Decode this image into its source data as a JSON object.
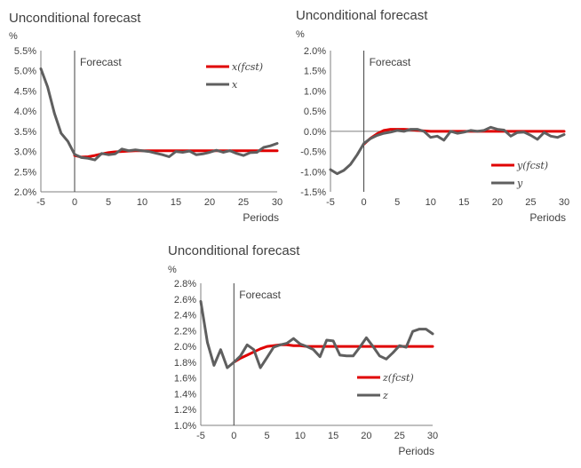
{
  "chart_data": [
    {
      "type": "line",
      "title": "Unconditional forecast",
      "unit": "%",
      "xlabel": "Periods",
      "marker_label": "Forecast",
      "marker_x": 0,
      "xlim": [
        -5,
        30
      ],
      "ylim": [
        2.0,
        5.5
      ],
      "xticks": [
        "-5",
        "0",
        "5",
        "10",
        "15",
        "20",
        "25",
        "30"
      ],
      "yticks": [
        "2.0%",
        "2.5%",
        "3.0%",
        "3.5%",
        "4.0%",
        "4.5%",
        "5.0%",
        "5.5%"
      ],
      "legend_position": "top-right",
      "series": [
        {
          "name": "x(fcst)",
          "color": "#e00000",
          "x": [
            0,
            1,
            2,
            3,
            4,
            5,
            6,
            7,
            8,
            9,
            10,
            11,
            12,
            13,
            14,
            15,
            16,
            17,
            18,
            19,
            20,
            21,
            22,
            23,
            24,
            25,
            26,
            27,
            28,
            29,
            30
          ],
          "values": [
            2.9,
            2.86,
            2.87,
            2.9,
            2.94,
            2.97,
            2.99,
            3.0,
            3.01,
            3.02,
            3.02,
            3.02,
            3.02,
            3.02,
            3.02,
            3.02,
            3.02,
            3.02,
            3.02,
            3.02,
            3.02,
            3.02,
            3.02,
            3.02,
            3.02,
            3.02,
            3.02,
            3.02,
            3.02,
            3.02,
            3.02
          ]
        },
        {
          "name": "x",
          "color": "#5f5f5f",
          "x": [
            -5,
            -4,
            -3,
            -2,
            -1,
            0,
            1,
            2,
            3,
            4,
            5,
            6,
            7,
            8,
            9,
            10,
            11,
            12,
            13,
            14,
            15,
            16,
            17,
            18,
            19,
            20,
            21,
            22,
            23,
            24,
            25,
            26,
            27,
            28,
            29,
            30
          ],
          "values": [
            5.05,
            4.6,
            3.95,
            3.45,
            3.25,
            2.93,
            2.85,
            2.83,
            2.79,
            2.95,
            2.92,
            2.94,
            3.06,
            3.02,
            3.04,
            3.02,
            3.0,
            2.96,
            2.92,
            2.87,
            3.0,
            2.98,
            3.01,
            2.92,
            2.94,
            2.98,
            3.03,
            2.98,
            3.02,
            2.95,
            2.9,
            2.97,
            2.98,
            3.1,
            3.14,
            3.2
          ]
        }
      ]
    },
    {
      "type": "line",
      "title": "Unconditional forecast",
      "unit": "%",
      "xlabel": "Periods",
      "marker_label": "Forecast",
      "marker_x": 0,
      "xlim": [
        -5,
        30
      ],
      "ylim": [
        -1.5,
        2.0
      ],
      "xticks": [
        "-5",
        "0",
        "5",
        "10",
        "15",
        "20",
        "25",
        "30"
      ],
      "yticks": [
        "-1.5%",
        "-1.0%",
        "-0.5%",
        "0.0%",
        "0.5%",
        "1.0%",
        "1.5%",
        "2.0%"
      ],
      "legend_position": "bottom-right",
      "series": [
        {
          "name": "y(fcst)",
          "color": "#e00000",
          "x": [
            0,
            1,
            2,
            3,
            4,
            5,
            6,
            7,
            8,
            9,
            10,
            11,
            12,
            13,
            14,
            15,
            16,
            17,
            18,
            19,
            20,
            21,
            22,
            23,
            24,
            25,
            26,
            27,
            28,
            29,
            30
          ],
          "values": [
            -0.32,
            -0.17,
            -0.06,
            0.02,
            0.05,
            0.05,
            0.05,
            0.04,
            0.02,
            0.01,
            0.0,
            0.0,
            0.0,
            0.0,
            0.0,
            0.0,
            0.0,
            0.0,
            0.0,
            0.0,
            0.0,
            0.0,
            0.0,
            0.0,
            0.0,
            0.0,
            0.0,
            0.0,
            0.0,
            0.0,
            0.0
          ]
        },
        {
          "name": "y",
          "color": "#5f5f5f",
          "x": [
            -5,
            -4,
            -3,
            -2,
            -1,
            0,
            1,
            2,
            3,
            4,
            5,
            6,
            7,
            8,
            9,
            10,
            11,
            12,
            13,
            14,
            15,
            16,
            17,
            18,
            19,
            20,
            21,
            22,
            23,
            24,
            25,
            26,
            27,
            28,
            29,
            30
          ],
          "values": [
            -0.95,
            -1.05,
            -0.97,
            -0.82,
            -0.58,
            -0.3,
            -0.18,
            -0.1,
            -0.05,
            -0.02,
            0.02,
            0.0,
            0.05,
            0.05,
            0.0,
            -0.15,
            -0.12,
            -0.22,
            0.0,
            -0.05,
            -0.02,
            0.02,
            0.0,
            0.02,
            0.1,
            0.05,
            0.03,
            -0.12,
            -0.03,
            -0.02,
            -0.1,
            -0.2,
            -0.03,
            -0.12,
            -0.15,
            -0.08
          ]
        }
      ]
    },
    {
      "type": "line",
      "title": "Unconditional forecast",
      "unit": "%",
      "xlabel": "Periods",
      "marker_label": "Forecast",
      "marker_x": 0,
      "xlim": [
        -5,
        30
      ],
      "ylim": [
        1.0,
        2.8
      ],
      "xticks": [
        "-5",
        "0",
        "5",
        "10",
        "15",
        "20",
        "25",
        "30"
      ],
      "yticks": [
        "1.0%",
        "1.2%",
        "1.4%",
        "1.6%",
        "1.8%",
        "2.0%",
        "2.2%",
        "2.4%",
        "2.6%",
        "2.8%"
      ],
      "legend_position": "bottom-right",
      "series": [
        {
          "name": "z(fcst)",
          "color": "#e00000",
          "x": [
            0,
            1,
            2,
            3,
            4,
            5,
            6,
            7,
            8,
            9,
            10,
            11,
            12,
            13,
            14,
            15,
            16,
            17,
            18,
            19,
            20,
            21,
            22,
            23,
            24,
            25,
            26,
            27,
            28,
            29,
            30
          ],
          "values": [
            1.8,
            1.85,
            1.89,
            1.93,
            1.97,
            2.0,
            2.01,
            2.02,
            2.02,
            2.01,
            2.01,
            2.0,
            2.0,
            2.0,
            2.0,
            2.0,
            2.0,
            2.0,
            2.0,
            2.0,
            2.0,
            2.0,
            2.0,
            2.0,
            2.0,
            2.0,
            2.0,
            2.0,
            2.0,
            2.0,
            2.0
          ]
        },
        {
          "name": "z",
          "color": "#5f5f5f",
          "x": [
            -5,
            -4,
            -3,
            -2,
            -1,
            0,
            1,
            2,
            3,
            4,
            5,
            6,
            7,
            8,
            9,
            10,
            11,
            12,
            13,
            14,
            15,
            16,
            17,
            18,
            19,
            20,
            21,
            22,
            23,
            24,
            25,
            26,
            27,
            28,
            29,
            30
          ],
          "values": [
            2.57,
            2.05,
            1.76,
            1.96,
            1.73,
            1.8,
            1.88,
            2.02,
            1.96,
            1.73,
            1.86,
            1.99,
            2.02,
            2.04,
            2.1,
            2.03,
            2.0,
            1.96,
            1.87,
            2.08,
            2.07,
            1.89,
            1.88,
            1.88,
            1.99,
            2.11,
            2.0,
            1.88,
            1.84,
            1.92,
            2.01,
            1.99,
            2.19,
            2.22,
            2.22,
            2.16
          ]
        }
      ]
    }
  ]
}
